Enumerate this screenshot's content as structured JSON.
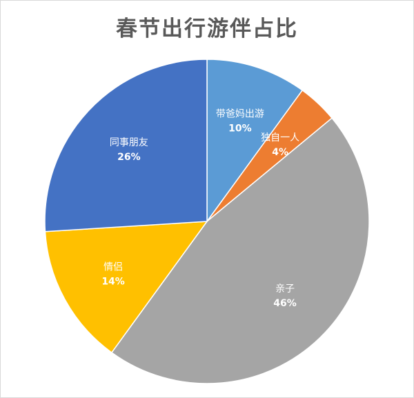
{
  "chart_data": {
    "type": "pie",
    "title": "春节出行游伴占比",
    "start_angle_deg": 0,
    "direction": "clockwise",
    "slices": [
      {
        "label": "带爸妈出游",
        "value": 10,
        "display": "10%",
        "color": "#5B9BD5"
      },
      {
        "label": "独自一人",
        "value": 4,
        "display": "4%",
        "color": "#ED7D31"
      },
      {
        "label": "亲子",
        "value": 46,
        "display": "46%",
        "color": "#A5A5A5"
      },
      {
        "label": "情侣",
        "value": 14,
        "display": "14%",
        "color": "#FFC000"
      },
      {
        "label": "同事朋友",
        "value": 26,
        "display": "26%",
        "color": "#4472C4"
      }
    ]
  }
}
